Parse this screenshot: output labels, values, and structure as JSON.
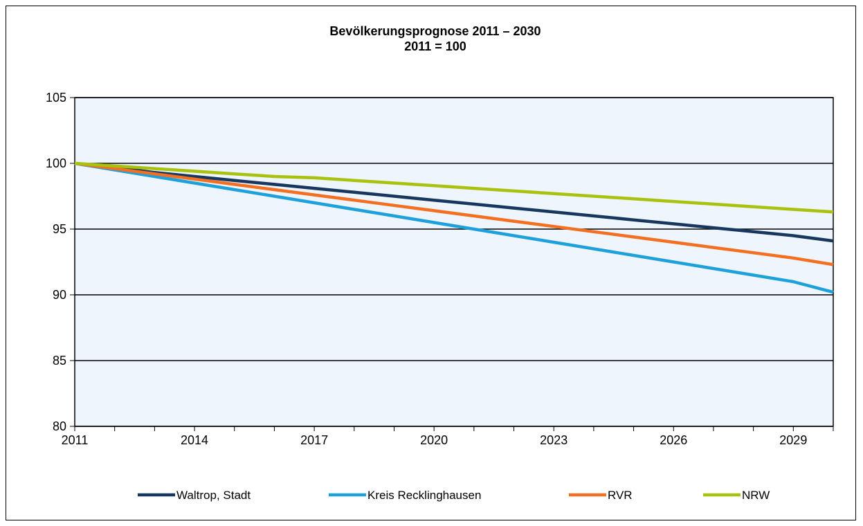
{
  "chart_data": {
    "type": "line",
    "title": "Bevölkerungsprognose 2011 – 2030",
    "subtitle": "2011 = 100",
    "xlabel": "",
    "ylabel": "",
    "x": [
      2011,
      2012,
      2013,
      2014,
      2015,
      2016,
      2017,
      2018,
      2019,
      2020,
      2021,
      2022,
      2023,
      2024,
      2025,
      2026,
      2027,
      2028,
      2029,
      2030
    ],
    "x_tick_labels": [
      "2011",
      "2014",
      "2017",
      "2020",
      "2023",
      "2026",
      "2029"
    ],
    "ylim": [
      80,
      105
    ],
    "y_ticks": [
      80,
      85,
      90,
      95,
      100,
      105
    ],
    "grid": "horizontal",
    "legend_position": "bottom",
    "plot_background": "#EEF5FC",
    "series": [
      {
        "name": "Waltrop, Stadt",
        "color": "#17375E",
        "values": [
          100.0,
          99.7,
          99.3,
          99.0,
          98.7,
          98.4,
          98.1,
          97.8,
          97.5,
          97.2,
          96.9,
          96.6,
          96.3,
          96.0,
          95.7,
          95.4,
          95.1,
          94.8,
          94.5,
          94.1
        ]
      },
      {
        "name": "Kreis Recklinghausen",
        "color": "#1EA1DB",
        "values": [
          100.0,
          99.5,
          99.0,
          98.5,
          98.0,
          97.5,
          97.0,
          96.5,
          96.0,
          95.5,
          95.0,
          94.5,
          94.0,
          93.5,
          93.0,
          92.5,
          92.0,
          91.5,
          91.0,
          90.2
        ]
      },
      {
        "name": "RVR",
        "color": "#F36F21",
        "values": [
          100.0,
          99.6,
          99.2,
          98.8,
          98.4,
          98.0,
          97.6,
          97.2,
          96.8,
          96.4,
          96.0,
          95.6,
          95.2,
          94.8,
          94.4,
          94.0,
          93.6,
          93.2,
          92.8,
          92.3
        ]
      },
      {
        "name": "NRW",
        "color": "#A8C20F",
        "values": [
          100.0,
          99.8,
          99.6,
          99.4,
          99.2,
          99.0,
          98.9,
          98.7,
          98.5,
          98.3,
          98.1,
          97.9,
          97.7,
          97.5,
          97.3,
          97.1,
          96.9,
          96.7,
          96.5,
          96.3
        ]
      }
    ]
  }
}
